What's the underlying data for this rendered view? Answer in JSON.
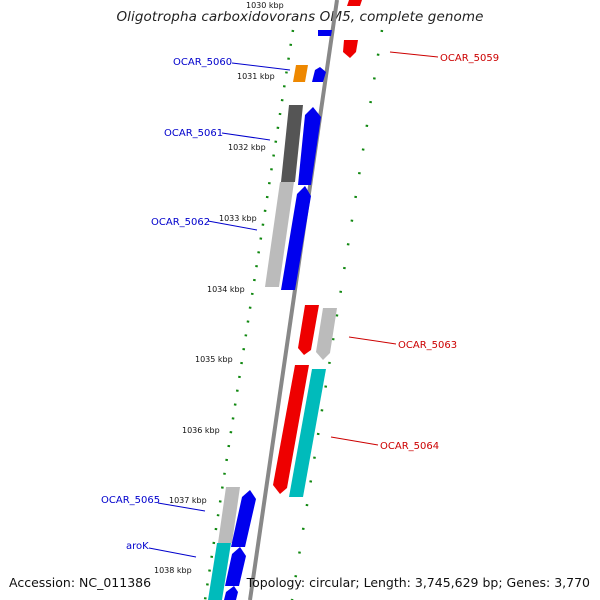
{
  "title": "Oligotropha carboxidovorans OM5, complete genome",
  "footer": {
    "accession": "Accession: NC_011386",
    "stats": "Topology: circular; Length: 3,745,629 bp; Genes: 3,770"
  },
  "ticks": [
    "1030 kbp",
    "1031 kbp",
    "1032 kbp",
    "1033 kbp",
    "1034 kbp",
    "1035 kbp",
    "1036 kbp",
    "1037 kbp",
    "1038 kbp"
  ],
  "gene_labels": [
    {
      "name": "OCAR_5059",
      "color": "#cc0000"
    },
    {
      "name": "OCAR_5060",
      "color": "#0000cc"
    },
    {
      "name": "OCAR_5061",
      "color": "#0000cc"
    },
    {
      "name": "OCAR_5062",
      "color": "#0000cc"
    },
    {
      "name": "OCAR_5063",
      "color": "#cc0000"
    },
    {
      "name": "OCAR_5064",
      "color": "#cc0000"
    },
    {
      "name": "OCAR_5065",
      "color": "#0000cc"
    },
    {
      "name": "aroK",
      "color": "#0000cc"
    }
  ],
  "colors": {
    "backbone": "#888888",
    "forward_cds": "#0000ee",
    "reverse_cds": "#ee0000",
    "cog_dark": "#555555",
    "cog_light": "#bbbbbb",
    "cog_cyan": "#00bbbb",
    "cog_orange": "#ee8800",
    "tick_green": "#118811"
  }
}
